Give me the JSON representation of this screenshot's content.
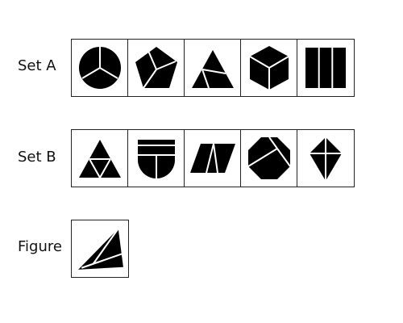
{
  "rows": [
    {
      "label": "Set A"
    },
    {
      "label": "Set B"
    },
    {
      "label": "Figure"
    }
  ],
  "colors": {
    "fill": "#000000",
    "line": "#ffffff",
    "border": "#222222"
  }
}
